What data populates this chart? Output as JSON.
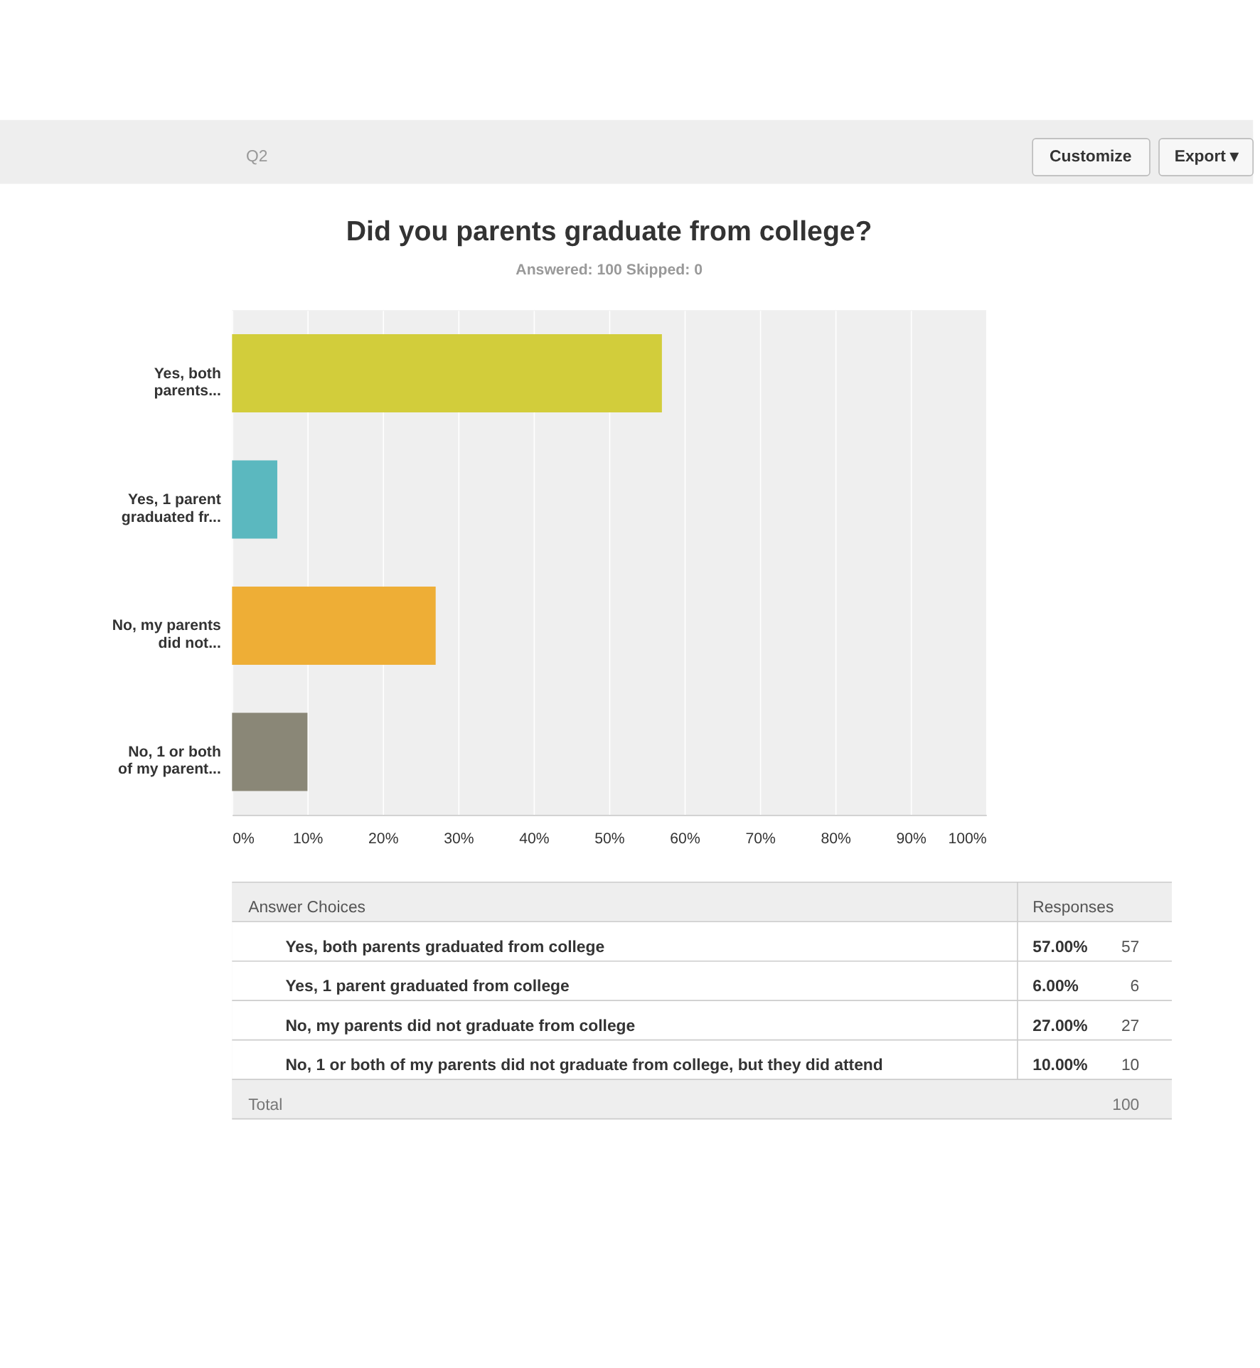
{
  "chart_data": {
    "type": "bar",
    "orientation": "horizontal",
    "title": "Did you parents graduate from college?",
    "subtitle": "Answered: 100    Skipped: 0",
    "categories": [
      "Yes, both parents...",
      "Yes, 1 parent graduated fr...",
      "No, my parents did not...",
      "No, 1 or both of my parent..."
    ],
    "values": [
      57,
      6,
      27,
      10
    ],
    "colors": [
      "#d2cd3b",
      "#5bb8bf",
      "#eeae36",
      "#8a8777"
    ],
    "xlim": [
      0,
      100
    ],
    "xticks": [
      {
        "value": 0,
        "label": "0%"
      },
      {
        "value": 10,
        "label": "10%"
      },
      {
        "value": 20,
        "label": "20%"
      },
      {
        "value": 30,
        "label": "30%"
      },
      {
        "value": 40,
        "label": "40%"
      },
      {
        "value": 50,
        "label": "50%"
      },
      {
        "value": 60,
        "label": "60%"
      },
      {
        "value": 70,
        "label": "70%"
      },
      {
        "value": 80,
        "label": "80%"
      },
      {
        "value": 90,
        "label": "90%"
      },
      {
        "value": 100,
        "label": "100%"
      }
    ],
    "grid": "x",
    "annotations": [
      "Q2",
      "Customize",
      "Export ▾",
      "Answer Choices",
      "Responses",
      "Yes, both parents graduated from college",
      "Yes, 1 parent graduated from college",
      "No, my parents did not graduate from college",
      "No, 1 or both of my parents did not graduate from college, but they did attend",
      "57",
      "6",
      "27",
      "10",
      "Total",
      "100",
      "57.00%",
      "6.00%",
      "27.00%",
      "10.00%"
    ]
  }
}
